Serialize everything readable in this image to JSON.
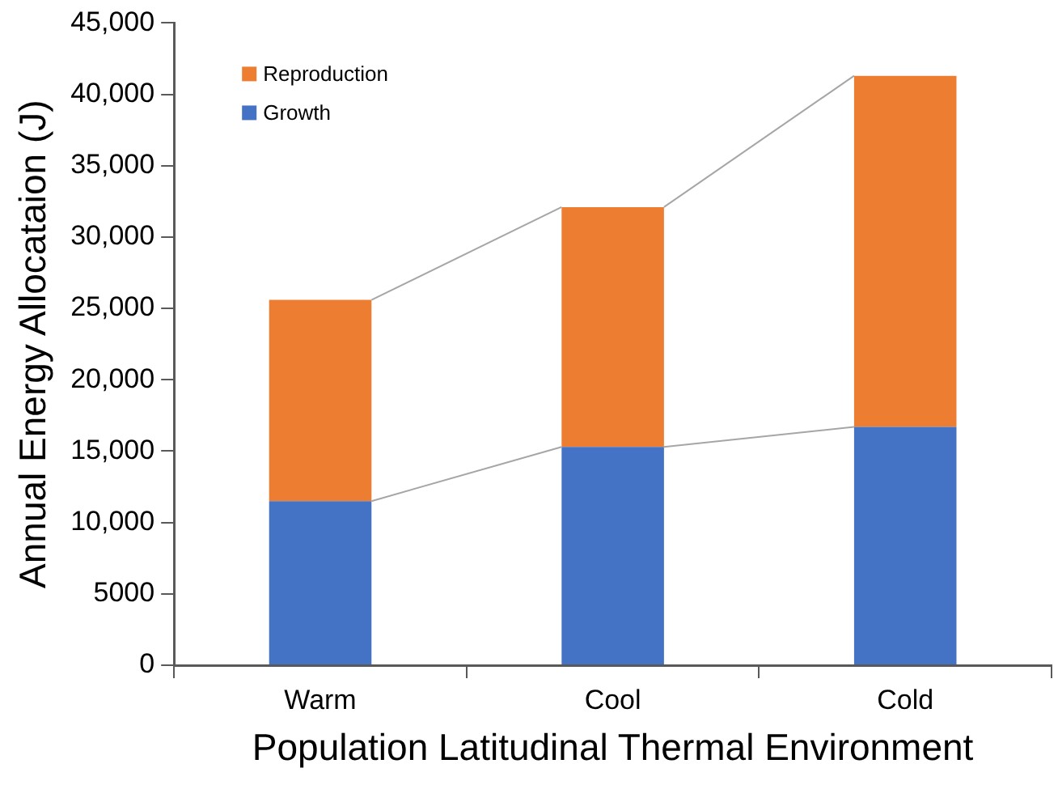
{
  "chart_data": {
    "type": "bar",
    "stacked": true,
    "xlabel": "Population Latitudinal Thermal Environment",
    "ylabel": "Annual Energy Allocataion (J)",
    "categories": [
      "Warm",
      "Cool",
      "Cold"
    ],
    "series": [
      {
        "name": "Growth",
        "color": "#4472c4",
        "values": [
          11500,
          15300,
          16700
        ]
      },
      {
        "name": "Reproduction",
        "color": "#ed7d31",
        "values": [
          14100,
          16800,
          24600
        ]
      }
    ],
    "ylim": [
      0,
      45000
    ],
    "yticks": [
      0,
      5000,
      {
        "value": 10000,
        "label": "10,000"
      },
      {
        "value": 15000,
        "label": "15,000"
      },
      {
        "value": 20000,
        "label": "20,000"
      },
      {
        "value": 25000,
        "label": "25,000"
      },
      {
        "value": 30000,
        "label": "30,000"
      },
      {
        "value": 35000,
        "label": "35,000"
      },
      {
        "value": 40000,
        "label": "40,000"
      },
      {
        "value": 45000,
        "label": "45,000"
      }
    ],
    "grid": false,
    "legend": "top left"
  }
}
